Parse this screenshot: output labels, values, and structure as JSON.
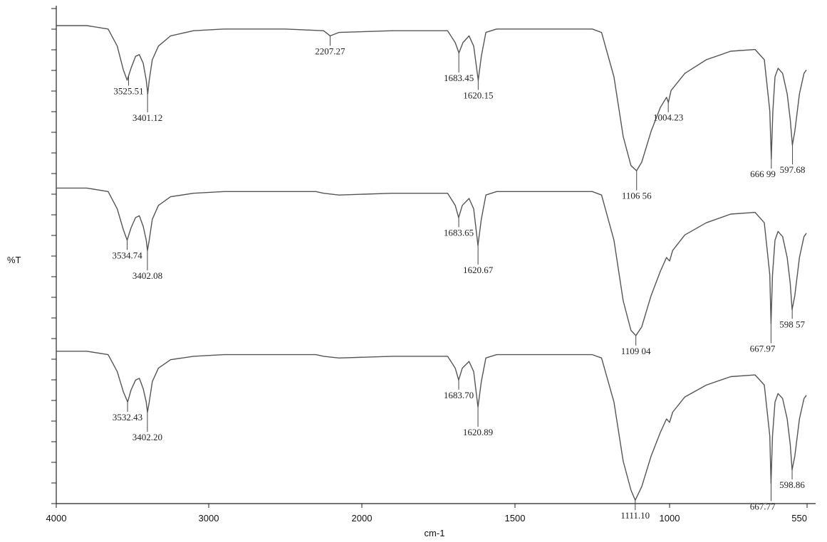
{
  "chart_data": {
    "type": "line",
    "xlabel": "cm-1",
    "ylabel": "%T",
    "xlim": [
      4000,
      550
    ],
    "x_reversed": true,
    "x_ticks": [
      "4000",
      "3000",
      "2000",
      "1500",
      "1000",
      "550"
    ],
    "y_tick_labels_shown": false,
    "grid": false,
    "legend": "none",
    "colors": {
      "line": "#555555",
      "axis": "#222222",
      "text": "#111111"
    },
    "series": [
      {
        "points": [
          [
            4000,
            90
          ],
          [
            3800,
            90
          ],
          [
            3660,
            88
          ],
          [
            3600,
            78
          ],
          [
            3560,
            64
          ],
          [
            3535,
            58
          ],
          [
            3510,
            65
          ],
          [
            3480,
            72
          ],
          [
            3455,
            73
          ],
          [
            3430,
            68
          ],
          [
            3410,
            58
          ],
          [
            3400,
            50
          ],
          [
            3390,
            58
          ],
          [
            3370,
            70
          ],
          [
            3330,
            78
          ],
          [
            3250,
            84
          ],
          [
            3100,
            87
          ],
          [
            2900,
            88
          ],
          [
            2500,
            88
          ],
          [
            2250,
            87
          ],
          [
            2207,
            84
          ],
          [
            2150,
            86
          ],
          [
            1900,
            87
          ],
          [
            1720,
            87
          ],
          [
            1695,
            80
          ],
          [
            1683,
            74
          ],
          [
            1670,
            80
          ],
          [
            1650,
            84
          ],
          [
            1635,
            78
          ],
          [
            1620,
            58
          ],
          [
            1610,
            72
          ],
          [
            1595,
            86
          ],
          [
            1560,
            88
          ],
          [
            1400,
            88
          ],
          [
            1250,
            88
          ],
          [
            1220,
            86
          ],
          [
            1180,
            60
          ],
          [
            1150,
            25
          ],
          [
            1125,
            8
          ],
          [
            1107,
            5
          ],
          [
            1090,
            10
          ],
          [
            1060,
            28
          ],
          [
            1030,
            42
          ],
          [
            1010,
            48
          ],
          [
            1004,
            45
          ],
          [
            995,
            52
          ],
          [
            950,
            62
          ],
          [
            880,
            70
          ],
          [
            800,
            75
          ],
          [
            720,
            76
          ],
          [
            690,
            70
          ],
          [
            672,
            40
          ],
          [
            667,
            12
          ],
          [
            662,
            40
          ],
          [
            655,
            60
          ],
          [
            645,
            65
          ],
          [
            630,
            62
          ],
          [
            615,
            50
          ],
          [
            605,
            35
          ],
          [
            598,
            20
          ],
          [
            590,
            28
          ],
          [
            575,
            50
          ],
          [
            560,
            62
          ],
          [
            552,
            64
          ]
        ]
      },
      {
        "points": [
          [
            4000,
            90
          ],
          [
            3800,
            90
          ],
          [
            3660,
            88
          ],
          [
            3600,
            78
          ],
          [
            3560,
            66
          ],
          [
            3535,
            60
          ],
          [
            3510,
            67
          ],
          [
            3480,
            73
          ],
          [
            3455,
            74
          ],
          [
            3430,
            68
          ],
          [
            3410,
            60
          ],
          [
            3402,
            54
          ],
          [
            3390,
            60
          ],
          [
            3370,
            72
          ],
          [
            3330,
            80
          ],
          [
            3250,
            85
          ],
          [
            3100,
            87
          ],
          [
            2900,
            88
          ],
          [
            2500,
            88
          ],
          [
            2300,
            88
          ],
          [
            2250,
            87
          ],
          [
            2150,
            86
          ],
          [
            1900,
            87
          ],
          [
            1720,
            87
          ],
          [
            1695,
            80
          ],
          [
            1684,
            73
          ],
          [
            1672,
            80
          ],
          [
            1650,
            84
          ],
          [
            1635,
            78
          ],
          [
            1621,
            57
          ],
          [
            1610,
            72
          ],
          [
            1595,
            86
          ],
          [
            1560,
            88
          ],
          [
            1400,
            88
          ],
          [
            1250,
            88
          ],
          [
            1220,
            86
          ],
          [
            1180,
            60
          ],
          [
            1150,
            25
          ],
          [
            1125,
            8
          ],
          [
            1109,
            5
          ],
          [
            1090,
            10
          ],
          [
            1060,
            28
          ],
          [
            1030,
            42
          ],
          [
            1010,
            50
          ],
          [
            1000,
            48
          ],
          [
            990,
            54
          ],
          [
            950,
            63
          ],
          [
            880,
            70
          ],
          [
            800,
            75
          ],
          [
            720,
            76
          ],
          [
            690,
            70
          ],
          [
            672,
            40
          ],
          [
            668,
            12
          ],
          [
            663,
            40
          ],
          [
            655,
            60
          ],
          [
            645,
            65
          ],
          [
            630,
            62
          ],
          [
            615,
            50
          ],
          [
            605,
            35
          ],
          [
            599,
            20
          ],
          [
            590,
            28
          ],
          [
            575,
            50
          ],
          [
            560,
            62
          ],
          [
            552,
            64
          ]
        ]
      },
      {
        "points": [
          [
            4000,
            90
          ],
          [
            3800,
            90
          ],
          [
            3660,
            88
          ],
          [
            3600,
            78
          ],
          [
            3560,
            66
          ],
          [
            3532,
            60
          ],
          [
            3510,
            67
          ],
          [
            3480,
            73
          ],
          [
            3455,
            74
          ],
          [
            3430,
            68
          ],
          [
            3410,
            60
          ],
          [
            3402,
            54
          ],
          [
            3390,
            60
          ],
          [
            3370,
            72
          ],
          [
            3330,
            80
          ],
          [
            3250,
            85
          ],
          [
            3100,
            87
          ],
          [
            2900,
            88
          ],
          [
            2500,
            88
          ],
          [
            2300,
            88
          ],
          [
            2250,
            87
          ],
          [
            2150,
            86
          ],
          [
            1900,
            87
          ],
          [
            1720,
            87
          ],
          [
            1695,
            80
          ],
          [
            1684,
            73
          ],
          [
            1672,
            80
          ],
          [
            1650,
            84
          ],
          [
            1635,
            78
          ],
          [
            1621,
            57
          ],
          [
            1610,
            72
          ],
          [
            1595,
            86
          ],
          [
            1560,
            88
          ],
          [
            1400,
            88
          ],
          [
            1250,
            88
          ],
          [
            1220,
            86
          ],
          [
            1180,
            60
          ],
          [
            1150,
            25
          ],
          [
            1125,
            8
          ],
          [
            1111,
            2
          ],
          [
            1090,
            10
          ],
          [
            1060,
            28
          ],
          [
            1030,
            42
          ],
          [
            1010,
            50
          ],
          [
            1000,
            48
          ],
          [
            990,
            54
          ],
          [
            950,
            63
          ],
          [
            880,
            70
          ],
          [
            800,
            75
          ],
          [
            720,
            76
          ],
          [
            690,
            70
          ],
          [
            672,
            40
          ],
          [
            668,
            12
          ],
          [
            663,
            40
          ],
          [
            655,
            60
          ],
          [
            645,
            65
          ],
          [
            630,
            62
          ],
          [
            615,
            50
          ],
          [
            605,
            35
          ],
          [
            599,
            20
          ],
          [
            590,
            28
          ],
          [
            575,
            50
          ],
          [
            560,
            62
          ],
          [
            552,
            64
          ]
        ]
      }
    ],
    "peak_labels": [
      {
        "series": 0,
        "x": 3525.51,
        "text": "3525.51"
      },
      {
        "series": 0,
        "x": 3401.12,
        "text": "3401.12"
      },
      {
        "series": 0,
        "x": 2207.27,
        "text": "2207.27"
      },
      {
        "series": 0,
        "x": 1683.45,
        "text": "1683.45"
      },
      {
        "series": 0,
        "x": 1620.15,
        "text": "1620.15"
      },
      {
        "series": 0,
        "x": 1106.56,
        "text": "1106 56"
      },
      {
        "series": 0,
        "x": 1004.23,
        "text": "1004.23"
      },
      {
        "series": 0,
        "x": 666.99,
        "text": "666 99"
      },
      {
        "series": 0,
        "x": 597.68,
        "text": "597.68"
      },
      {
        "series": 1,
        "x": 3534.74,
        "text": "3534.74"
      },
      {
        "series": 1,
        "x": 3402.08,
        "text": "3402.08"
      },
      {
        "series": 1,
        "x": 1683.65,
        "text": "1683.65"
      },
      {
        "series": 1,
        "x": 1620.67,
        "text": "1620.67"
      },
      {
        "series": 1,
        "x": 1109.04,
        "text": "1109 04"
      },
      {
        "series": 1,
        "x": 667.97,
        "text": "667.97"
      },
      {
        "series": 1,
        "x": 598.57,
        "text": "598 57"
      },
      {
        "series": 2,
        "x": 3532.43,
        "text": "3532.43"
      },
      {
        "series": 2,
        "x": 3402.2,
        "text": "3402.20"
      },
      {
        "series": 2,
        "x": 1683.7,
        "text": "1683.70"
      },
      {
        "series": 2,
        "x": 1620.89,
        "text": "1620.89"
      },
      {
        "series": 2,
        "x": 1111.1,
        "text": "1111.10"
      },
      {
        "series": 2,
        "x": 667.77,
        "text": "667.77"
      },
      {
        "series": 2,
        "x": 598.86,
        "text": "598.86"
      }
    ]
  }
}
